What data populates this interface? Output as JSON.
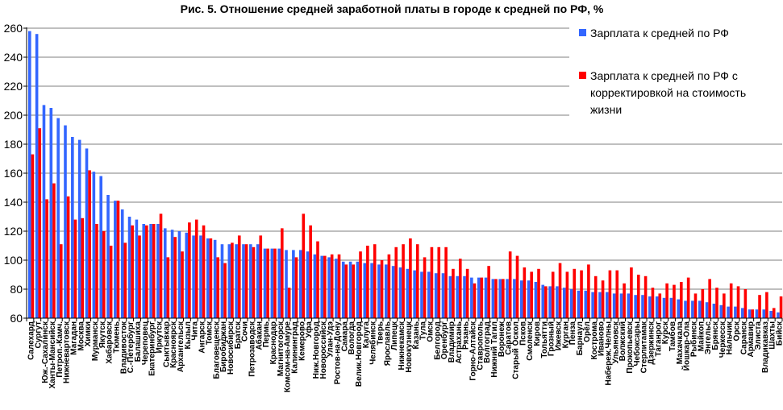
{
  "chart_data": {
    "type": "bar",
    "title": "Рис. 5. Отношение средней заработной платы в городе к средней по РФ, %",
    "xlabel": "",
    "ylabel": "",
    "ylim": [
      60,
      260
    ],
    "yticks": [
      60,
      80,
      100,
      120,
      140,
      160,
      180,
      200,
      220,
      240,
      260
    ],
    "grid": true,
    "legend_position": "top-right",
    "colors": {
      "series1": "#3366ff",
      "series2": "#ff0000"
    },
    "categories": [
      "Салехард",
      "Сургут",
      "Юж.-Сахалинск",
      "Ханты-Мансийск",
      "Петроп.-Камч.",
      "Нижневартовск",
      "Магадан",
      "Москва",
      "Химки",
      "Мурманск",
      "Якутск",
      "Хабаровск",
      "Тюмень",
      "Владивосток",
      "С.-Петербург",
      "Балашиха",
      "Череповец",
      "Екатеринбург",
      "Иркутск",
      "Сыктывкар",
      "Красноярск",
      "Архангельск",
      "Кызыл",
      "Чита",
      "Ангарск",
      "Томск",
      "Благовещенск",
      "Биробиджан",
      "Новосибирск",
      "Братск",
      "Сочи",
      "Петрозаводск",
      "Абакан",
      "Пермь",
      "Краснодар",
      "Магнитогорск",
      "Комсом-на-Амуре",
      "Калининград",
      "Кемерово",
      "Уфа",
      "Ниж.Новгород",
      "Новороссийск",
      "Улан-Удэ",
      "Ростов-на-Дону",
      "Самара",
      "Вологда",
      "Велик.Новгород",
      "Калуга",
      "Челябинск",
      "Тверь",
      "Ярославль",
      "Липецк",
      "Нижнекамск",
      "Новокузнецк",
      "Казань",
      "Тула",
      "Омск",
      "Белгород",
      "Оренбург",
      "Владимир",
      "Астрахань",
      "Рязань",
      "Горно-Алтайск",
      "Ставрополь",
      "Волгоград",
      "Нижний Тагил",
      "Воронеж",
      "Саратов",
      "Старый Оскол",
      "Псков",
      "Смоленск",
      "Киров",
      "Тольятти",
      "Грозный",
      "Ижевск",
      "Курган",
      "Пенза",
      "Барнаул",
      "Орёл",
      "Кострома",
      "Иваново",
      "Набереж.Челны",
      "Ульяновск",
      "Волжский",
      "Прокопьевск",
      "Чебоксары",
      "Стерлитамак",
      "Дзержинск",
      "Таганрог",
      "Курск",
      "Тамбов",
      "Махачкала",
      "Йошкар-Ола",
      "Рыбинск",
      "Майкоп",
      "Энгельс",
      "Брянск",
      "Черкесск",
      "Нальчик",
      "Орск",
      "Саранск",
      "Армавир",
      "Элиста",
      "Владикавказ",
      "Шахты",
      "Бийск"
    ],
    "series": [
      {
        "name": "Зарплата к средней по РФ",
        "values": [
          258,
          256,
          207,
          205,
          198,
          193,
          185,
          183,
          177,
          161,
          158,
          145,
          141,
          135,
          130,
          128,
          125,
          125,
          125,
          122,
          121,
          120,
          119,
          117,
          117,
          115,
          114,
          111,
          111,
          111,
          111,
          111,
          111,
          108,
          108,
          108,
          107,
          107,
          107,
          106,
          104,
          103,
          102,
          101,
          99,
          99,
          99,
          98,
          98,
          97,
          97,
          96,
          95,
          94,
          93,
          92,
          92,
          91,
          91,
          89,
          89,
          89,
          88,
          88,
          88,
          87,
          87,
          87,
          87,
          86,
          86,
          85,
          83,
          82,
          82,
          81,
          80,
          79,
          79,
          78,
          78,
          78,
          77,
          77,
          77,
          76,
          76,
          75,
          75,
          74,
          74,
          73,
          72,
          72,
          72,
          71,
          70,
          69,
          68,
          68,
          67,
          66,
          66,
          66,
          65,
          64
        ]
      },
      {
        "name": "Зарплата к средней по РФ с корректировкой на стоимость жизни",
        "values": [
          173,
          191,
          142,
          153,
          111,
          144,
          128,
          129,
          162,
          125,
          120,
          110,
          141,
          112,
          124,
          117,
          124,
          125,
          132,
          102,
          116,
          106,
          126,
          128,
          124,
          115,
          102,
          98,
          112,
          117,
          111,
          109,
          117,
          108,
          108,
          122,
          81,
          102,
          132,
          124,
          113,
          103,
          104,
          104,
          97,
          97,
          106,
          110,
          111,
          100,
          104,
          109,
          111,
          115,
          111,
          102,
          109,
          109,
          109,
          94,
          101,
          94,
          84,
          88,
          96,
          87,
          87,
          106,
          103,
          95,
          92,
          94,
          82,
          92,
          98,
          92,
          94,
          93,
          97,
          89,
          86,
          93,
          93,
          84,
          95,
          90,
          89,
          81,
          77,
          84,
          83,
          85,
          88,
          77,
          80,
          87,
          81,
          77,
          84,
          82,
          80,
          66,
          76,
          78,
          67,
          75
        ]
      }
    ],
    "legend": [
      {
        "lines": [
          "Зарплата к средней по РФ"
        ]
      },
      {
        "lines": [
          "Зарплата к средней по РФ с",
          "корректировкой на стоимость",
          "жизни"
        ]
      }
    ]
  }
}
